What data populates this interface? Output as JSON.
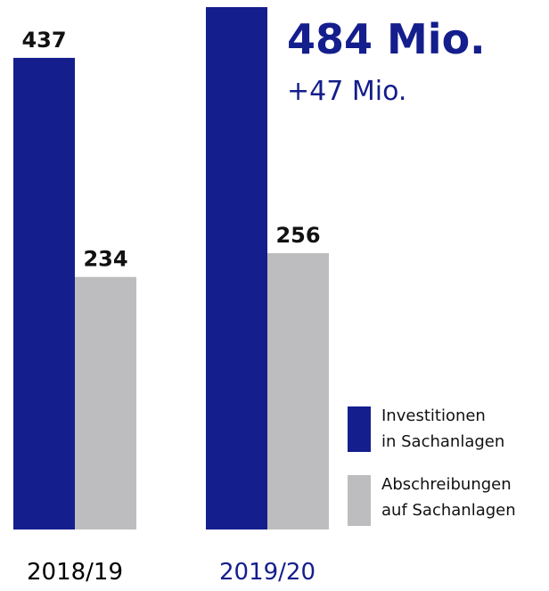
{
  "chart_data": {
    "type": "bar",
    "categories": [
      "2018/19",
      "2019/20"
    ],
    "category_colors": [
      "#000000",
      "#141e8c"
    ],
    "series": [
      {
        "name": "Investitionen\nin Sachanlagen",
        "color": "#141e8c",
        "values": [
          437,
          484
        ],
        "value_labels": [
          "437",
          "484 Mio."
        ]
      },
      {
        "name": "Abschreibungen\nauf Sachanlagen",
        "color": "#bdbdbf",
        "values": [
          234,
          256
        ]
      }
    ],
    "annotations": [
      "+47 Mio."
    ]
  }
}
